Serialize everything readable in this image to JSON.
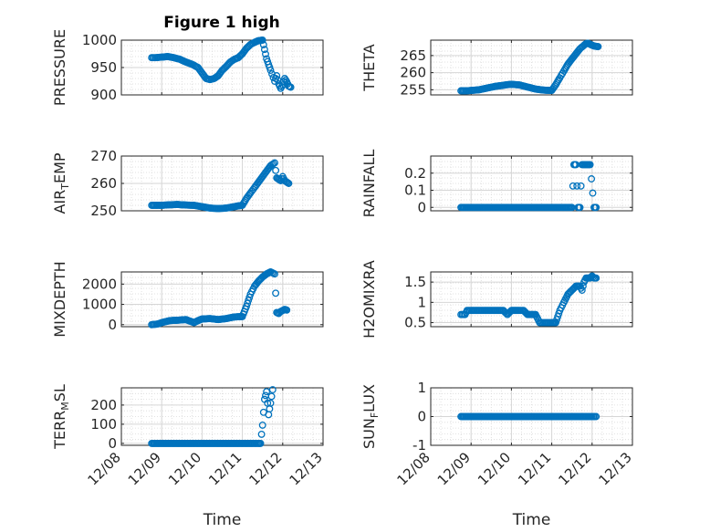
{
  "figure": {
    "title": "Figure 1 high",
    "marker_color": "#0072BD",
    "axis_color": "#262626",
    "grid": true,
    "minor_grid": true
  },
  "chart_data": [
    {
      "type": "scatter",
      "ylabel": "PRESSURE",
      "xlabel": "",
      "xlim": [
        0,
        5
      ],
      "ylim": [
        900,
        1000
      ],
      "yticks": [
        "900",
        "950",
        "1000"
      ],
      "x": [
        0.75,
        0.85,
        1.0,
        1.15,
        1.3,
        1.45,
        1.6,
        1.75,
        1.9,
        2.0,
        2.1,
        2.2,
        2.3,
        2.4,
        2.5,
        2.6,
        2.7,
        2.8,
        2.9,
        3.0,
        3.1,
        3.2,
        3.3,
        3.4,
        3.5,
        3.6,
        3.7,
        3.8,
        3.85,
        3.9,
        3.95,
        4.0,
        4.05,
        4.1,
        4.15,
        4.2
      ],
      "y": [
        968,
        968,
        969,
        970,
        968,
        965,
        960,
        956,
        950,
        940,
        930,
        928,
        930,
        935,
        945,
        952,
        960,
        965,
        968,
        975,
        985,
        992,
        996,
        999,
        1000,
        966,
        945,
        925,
        935,
        920,
        912,
        918,
        930,
        924,
        916,
        914
      ]
    },
    {
      "type": "scatter",
      "ylabel": "THETA",
      "xlabel": "",
      "xlim": [
        0,
        5
      ],
      "ylim": [
        253.5,
        269.5
      ],
      "yticks": [
        "255",
        "260",
        "265"
      ],
      "x": [
        0.75,
        0.9,
        1.0,
        1.2,
        1.4,
        1.6,
        1.8,
        1.9,
        2.0,
        2.2,
        2.4,
        2.6,
        2.8,
        3.0,
        3.1,
        3.2,
        3.3,
        3.4,
        3.5,
        3.6,
        3.7,
        3.8,
        3.85,
        3.9,
        3.95,
        4.0,
        4.05,
        4.1,
        4.15
      ],
      "y": [
        254.7,
        254.7,
        254.8,
        255.0,
        255.5,
        256.0,
        256.3,
        256.5,
        256.6,
        256.4,
        255.8,
        255.2,
        254.9,
        254.8,
        256.5,
        258.5,
        260.5,
        262.5,
        264.0,
        265.5,
        267.0,
        268.0,
        268.5,
        268.6,
        268.3,
        268.0,
        267.8,
        267.7,
        267.6
      ]
    },
    {
      "type": "scatter",
      "ylabel": "AIR_TEMP",
      "ylabel_main": "AIR",
      "ylabel_sub": "T",
      "ylabel_rest": "EMP",
      "xlabel": "",
      "xlim": [
        0,
        5
      ],
      "ylim": [
        250,
        270
      ],
      "yticks": [
        "250",
        "260",
        "270"
      ],
      "x": [
        0.75,
        0.9,
        1.0,
        1.2,
        1.4,
        1.6,
        1.8,
        2.0,
        2.2,
        2.4,
        2.6,
        2.8,
        2.9,
        3.0,
        3.1,
        3.2,
        3.3,
        3.4,
        3.5,
        3.6,
        3.7,
        3.8,
        3.85,
        3.9,
        3.95,
        4.0,
        4.05,
        4.1,
        4.15
      ],
      "y": [
        252,
        252,
        252,
        252.2,
        252.3,
        252.1,
        252,
        251.5,
        251,
        250.8,
        251,
        251.5,
        251.8,
        252,
        254.5,
        256.5,
        258.5,
        260.5,
        262.5,
        264.5,
        266.5,
        267.5,
        262,
        261.5,
        261,
        262.5,
        261,
        260.5,
        260
      ]
    },
    {
      "type": "scatter",
      "ylabel": "RAINFALL",
      "xlabel": "",
      "xlim": [
        0,
        5
      ],
      "ylim": [
        -0.02,
        0.3
      ],
      "yticks": [
        "0",
        "0.1",
        "0.2"
      ],
      "x": [
        0.75,
        1.0,
        1.25,
        1.5,
        1.75,
        2.0,
        2.25,
        2.5,
        2.75,
        3.0,
        3.25,
        3.45,
        3.5,
        3.55,
        3.6,
        3.65,
        3.7,
        3.75,
        3.8,
        3.85,
        3.95,
        4.05,
        4.1
      ],
      "y": [
        0,
        0,
        0,
        0,
        0,
        0,
        0,
        0,
        0,
        0,
        0,
        0,
        0,
        0.25,
        0.25,
        0,
        0,
        0.25,
        0.25,
        0.25,
        0.25,
        0,
        0
      ]
    },
    {
      "type": "scatter",
      "ylabel": "MIXDEPTH",
      "xlabel": "",
      "xlim": [
        0,
        5
      ],
      "ylim": [
        -100,
        2600
      ],
      "yticks": [
        "0",
        "1000",
        "2000"
      ],
      "x": [
        0.75,
        0.9,
        1.0,
        1.2,
        1.4,
        1.6,
        1.8,
        1.9,
        2.0,
        2.2,
        2.4,
        2.6,
        2.8,
        3.0,
        3.1,
        3.2,
        3.3,
        3.4,
        3.5,
        3.6,
        3.7,
        3.8,
        3.85,
        3.9,
        3.95,
        4.0,
        4.05,
        4.1
      ],
      "y": [
        0,
        30,
        100,
        200,
        220,
        250,
        100,
        200,
        280,
        300,
        250,
        300,
        380,
        400,
        900,
        1500,
        1900,
        2150,
        2350,
        2500,
        2600,
        2500,
        600,
        550,
        650,
        700,
        750,
        720
      ]
    },
    {
      "type": "scatter",
      "ylabel": "H2OMIXRA",
      "xlabel": "",
      "xlim": [
        0,
        5
      ],
      "ylim": [
        0.4,
        1.75
      ],
      "yticks": [
        "0.5",
        "1",
        "1.5"
      ],
      "x": [
        0.75,
        0.85,
        0.9,
        1.0,
        1.2,
        1.4,
        1.6,
        1.8,
        1.9,
        2.0,
        2.1,
        2.2,
        2.3,
        2.4,
        2.5,
        2.6,
        2.7,
        2.8,
        3.0,
        3.1,
        3.2,
        3.3,
        3.4,
        3.5,
        3.6,
        3.7,
        3.75,
        3.8,
        3.85,
        3.9,
        3.95,
        4.0,
        4.05,
        4.1
      ],
      "y": [
        0.7,
        0.7,
        0.8,
        0.8,
        0.8,
        0.8,
        0.8,
        0.8,
        0.7,
        0.8,
        0.8,
        0.8,
        0.8,
        0.7,
        0.7,
        0.7,
        0.5,
        0.5,
        0.5,
        0.5,
        0.8,
        1.0,
        1.2,
        1.3,
        1.4,
        1.4,
        1.3,
        1.5,
        1.6,
        1.6,
        1.6,
        1.65,
        1.6,
        1.6
      ]
    },
    {
      "type": "scatter",
      "ylabel": "TERR_MSL",
      "ylabel_main": "TERR",
      "ylabel_sub": "M",
      "ylabel_rest": "SL",
      "xlabel": "Time",
      "xlim": [
        0,
        5
      ],
      "ylim": [
        -10,
        290
      ],
      "yticks": [
        "0",
        "100",
        "200"
      ],
      "xticks": [
        "12/08",
        "12/09",
        "12/10",
        "12/11",
        "12/12",
        "12/13"
      ],
      "x": [
        0.75,
        1.0,
        1.25,
        1.5,
        1.75,
        2.0,
        2.25,
        2.5,
        2.75,
        3.0,
        3.25,
        3.4,
        3.45,
        3.5,
        3.55,
        3.6,
        3.65,
        3.7,
        3.75
      ],
      "y": [
        0,
        0,
        0,
        0,
        0,
        0,
        0,
        0,
        0,
        0,
        0,
        0,
        0,
        95,
        230,
        270,
        150,
        210,
        280
      ]
    },
    {
      "type": "scatter",
      "ylabel": "SUN_FLUX",
      "ylabel_main": "SUN",
      "ylabel_sub": "F",
      "ylabel_rest": "LUX",
      "xlabel": "Time",
      "xlim": [
        0,
        5
      ],
      "ylim": [
        -1,
        1
      ],
      "yticks": [
        "-1",
        "0",
        "1"
      ],
      "xticks": [
        "12/08",
        "12/09",
        "12/10",
        "12/11",
        "12/12",
        "12/13"
      ],
      "x": [
        0.75,
        1.0,
        1.25,
        1.5,
        1.75,
        2.0,
        2.25,
        2.5,
        2.75,
        3.0,
        3.25,
        3.5,
        3.75,
        4.0,
        4.1
      ],
      "y": [
        0,
        0,
        0,
        0,
        0,
        0,
        0,
        0,
        0,
        0,
        0,
        0,
        0,
        0,
        0
      ]
    }
  ]
}
